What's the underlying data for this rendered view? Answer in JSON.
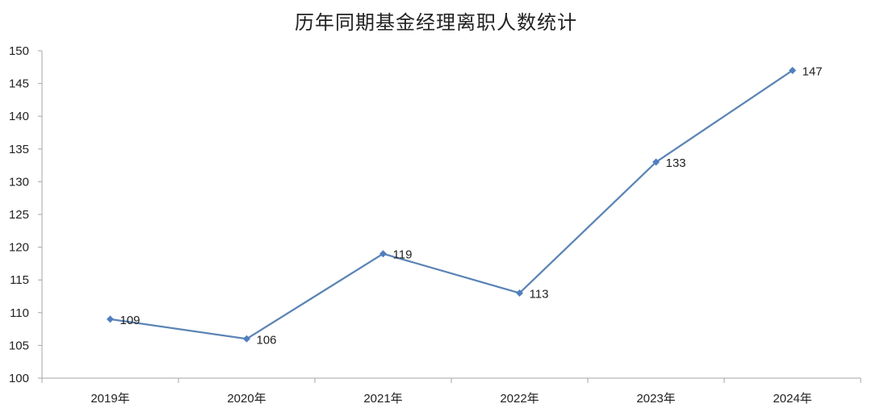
{
  "chart_data": {
    "type": "line",
    "title": "历年同期基金经理离职人数统计",
    "categories": [
      "2019年",
      "2020年",
      "2021年",
      "2022年",
      "2023年",
      "2024年"
    ],
    "series": [
      {
        "values": [
          109,
          106,
          119,
          113,
          133,
          147
        ]
      }
    ],
    "data_labels": [
      "109",
      "106",
      "119",
      "113",
      "133",
      "147"
    ],
    "y_ticks": [
      "100",
      "105",
      "110",
      "115",
      "120",
      "125",
      "130",
      "135",
      "140",
      "145",
      "150"
    ],
    "ylim": [
      100,
      150
    ],
    "grid": false,
    "legend": "none",
    "line_color": "#5b84b5",
    "marker_color": "#4f7fbf",
    "axis_color": "#a6a6a6"
  }
}
